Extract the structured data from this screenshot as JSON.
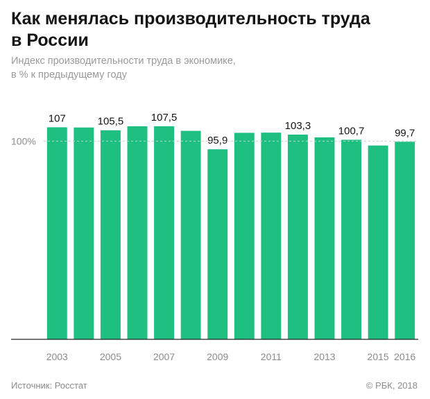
{
  "title": "Как менялась производительность труда\nв России",
  "subtitle": "Индекс производительности труда в экономике,\nв % к предыдущему году",
  "source": "Источник: Росстат",
  "copyright": "© РБК, 2018",
  "colors": {
    "bar": "#1fbf82",
    "baseline": "#222222",
    "reference": "#cccccc",
    "text": "#141414",
    "tick": "#8c8c8c"
  },
  "chart_data": {
    "type": "bar",
    "title": "",
    "xlabel": "",
    "ylabel": "",
    "categories": [
      "2003",
      "2004",
      "2005",
      "2006",
      "2007",
      "2008",
      "2009",
      "2010",
      "2011",
      "2012",
      "2013",
      "2014",
      "2015",
      "2016"
    ],
    "values": [
      107,
      106.9,
      105.5,
      107.5,
      107.5,
      105.2,
      95.9,
      104.2,
      104.3,
      103.3,
      101.9,
      100.7,
      97.8,
      99.7
    ],
    "data_labels": [
      "107",
      "",
      "105,5",
      "",
      "107,5",
      "",
      "95,9",
      "",
      "",
      "103,3",
      "",
      "100,7",
      "",
      "99,7"
    ],
    "x_tick_labels": [
      "2003",
      "",
      "2005",
      "",
      "2007",
      "",
      "2009",
      "",
      "2011",
      "",
      "2013",
      "",
      "2015",
      "2016"
    ],
    "reference_line": {
      "value": 100,
      "label": "100%"
    },
    "ylim": [
      0,
      107.5
    ],
    "grid": false,
    "legend": "none"
  }
}
